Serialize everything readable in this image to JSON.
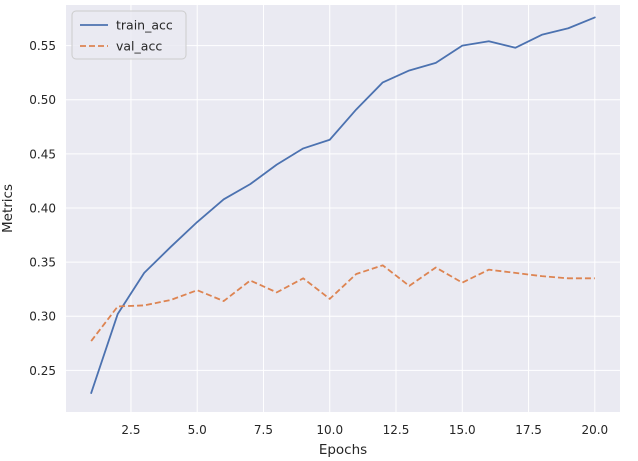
{
  "chart_data": {
    "type": "line",
    "title": "",
    "xlabel": "Epochs",
    "ylabel": "Metrics",
    "xlim": [
      0.05,
      20.95
    ],
    "ylim": [
      0.2115,
      0.5875
    ],
    "x_ticks": [
      2.5,
      5.0,
      7.5,
      10.0,
      12.5,
      15.0,
      17.5,
      20.0
    ],
    "x_tick_labels": [
      "2.5",
      "5.0",
      "7.5",
      "10.0",
      "12.5",
      "15.0",
      "17.5",
      "20.0"
    ],
    "y_ticks": [
      0.25,
      0.3,
      0.35,
      0.4,
      0.45,
      0.5,
      0.55
    ],
    "y_tick_labels": [
      "0.25",
      "0.30",
      "0.35",
      "0.40",
      "0.45",
      "0.50",
      "0.55"
    ],
    "grid": true,
    "legend_position": "upper left",
    "x": [
      1,
      2,
      3,
      4,
      5,
      6,
      7,
      8,
      9,
      10,
      11,
      12,
      13,
      14,
      15,
      16,
      17,
      18,
      19,
      20
    ],
    "series": [
      {
        "name": "train_acc",
        "color": "#4c72b0",
        "linestyle": "solid",
        "values": [
          0.229,
          0.302,
          0.34,
          0.364,
          0.387,
          0.408,
          0.422,
          0.44,
          0.455,
          0.463,
          0.491,
          0.516,
          0.527,
          0.534,
          0.55,
          0.554,
          0.548,
          0.56,
          0.566,
          0.576
        ]
      },
      {
        "name": "val_acc",
        "color": "#dd8452",
        "linestyle": "dashed",
        "values": [
          0.277,
          0.309,
          0.31,
          0.315,
          0.324,
          0.314,
          0.333,
          0.322,
          0.335,
          0.316,
          0.339,
          0.347,
          0.328,
          0.345,
          0.331,
          0.343,
          0.34,
          0.337,
          0.335,
          0.335
        ]
      }
    ]
  },
  "colors": {
    "plot_background": "#eaeaf2",
    "grid": "#ffffff",
    "text": "#262626"
  }
}
